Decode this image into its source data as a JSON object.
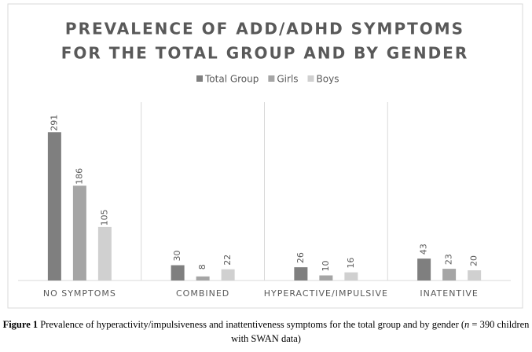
{
  "chart_data": {
    "type": "bar",
    "title": [
      "PREVALENCE OF ADD/ADHD SYMPTOMS",
      "FOR THE TOTAL GROUP AND BY GENDER"
    ],
    "categories": [
      "NO SYMPTOMS",
      "COMBINED",
      "HYPERACTIVE/IMPULSIVE",
      "INATENTIVE"
    ],
    "series": [
      {
        "name": "Total Group",
        "color": "#7f7f7f",
        "values": [
          291,
          30,
          26,
          43
        ]
      },
      {
        "name": "Girls",
        "color": "#a5a5a5",
        "values": [
          186,
          8,
          10,
          23
        ]
      },
      {
        "name": "Boys",
        "color": "#d0d0d0",
        "values": [
          105,
          22,
          16,
          20
        ]
      }
    ],
    "ylim": [
      0,
      350
    ],
    "legend": "top"
  },
  "caption": {
    "label": "Figure 1",
    "text": "Prevalence of hyperactivity/impulsiveness and inattentiveness symptoms for the total group and by gender (",
    "italic": "n",
    "text_end": " = 390 children with SWAN data)"
  }
}
